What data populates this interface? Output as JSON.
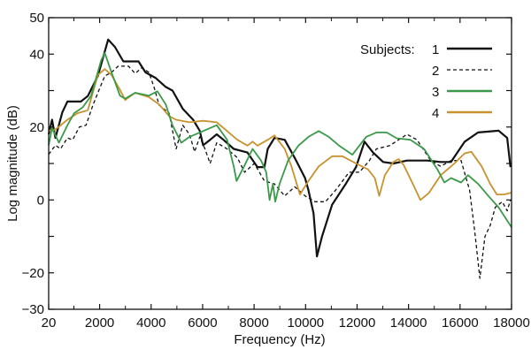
{
  "chart_data": {
    "type": "line",
    "title": "",
    "xlabel": "Frequency (Hz)",
    "ylabel": "Log magnitude (dB)",
    "xlim": [
      20,
      18000
    ],
    "ylim": [
      -30,
      50
    ],
    "x_ticks": [
      20,
      2000,
      4000,
      6000,
      8000,
      10000,
      12000,
      14000,
      16000,
      18000
    ],
    "x_tick_labels": [
      "20",
      "2000",
      "4000",
      "6000",
      "8000",
      "10000",
      "12000",
      "14000",
      "16000",
      "18000"
    ],
    "y_ticks": [
      -30,
      -20,
      -10,
      0,
      10,
      20,
      30,
      40,
      50
    ],
    "y_tick_labels": [
      "−30",
      "−20",
      "",
      "0",
      "",
      "20",
      "",
      "40",
      "50"
    ],
    "grid": false,
    "legend": {
      "title": "Subjects:",
      "placement": "top-right"
    },
    "series": [
      {
        "name": "1",
        "color": "#111111",
        "dash": "solid",
        "x": [
          20,
          150,
          280,
          550,
          750,
          1010,
          1270,
          1540,
          1930,
          2330,
          2590,
          2920,
          3250,
          3510,
          3780,
          4170,
          4570,
          4830,
          5230,
          5630,
          5890,
          6020,
          6290,
          6550,
          6810,
          7210,
          7740,
          8130,
          8400,
          8530,
          8790,
          9190,
          9580,
          9980,
          10110,
          10310,
          10440,
          10640,
          11030,
          11560,
          11960,
          12290,
          12620,
          13010,
          13410,
          13940,
          14730,
          15250,
          15650,
          16180,
          16700,
          17500,
          17830,
          17960
        ],
        "y": [
          18,
          22,
          17,
          24,
          27,
          27,
          27,
          28.5,
          34,
          44,
          42,
          38,
          38,
          38,
          35,
          33.5,
          31,
          30,
          25,
          22,
          19,
          15,
          16.5,
          18,
          16.5,
          14,
          13,
          9,
          9,
          14,
          17,
          16.5,
          11.5,
          6,
          2.7,
          -3.7,
          -15.5,
          -10,
          -1.3,
          4.4,
          9,
          16,
          13,
          10.4,
          10,
          10.8,
          10.8,
          10.4,
          10.4,
          16,
          18.5,
          19,
          17,
          9
        ]
      },
      {
        "name": "2",
        "color": "#111111",
        "dash": "dashed",
        "x": [
          20,
          280,
          480,
          750,
          950,
          1210,
          1470,
          1740,
          1930,
          2200,
          2460,
          2720,
          3120,
          3380,
          3650,
          3910,
          4110,
          4310,
          4700,
          4970,
          5230,
          5490,
          5690,
          5890,
          6090,
          6290,
          6550,
          6950,
          7350,
          7630,
          8010,
          8400,
          8790,
          9190,
          9580,
          9980,
          10370,
          10770,
          11170,
          11690,
          12090,
          12480,
          12750,
          13270,
          13940,
          14330,
          14860,
          15250,
          15650,
          16040,
          16370,
          16570,
          16770,
          16970,
          17170,
          17370,
          17640,
          17830,
          17960
        ],
        "y": [
          12.5,
          15,
          14,
          17,
          16.5,
          20,
          20.5,
          26,
          29.4,
          34,
          35,
          36.7,
          36.7,
          34.7,
          36.3,
          35,
          31,
          26,
          23.8,
          14,
          20.5,
          18,
          13.2,
          17.3,
          14,
          10,
          15.7,
          14,
          11.6,
          7.6,
          10,
          5.2,
          4.4,
          1.1,
          3.6,
          1.1,
          -0.5,
          -0.5,
          2.7,
          7.6,
          7.6,
          10.8,
          14,
          14.9,
          18,
          16.5,
          10.8,
          9.2,
          10.8,
          10.8,
          2.7,
          -8.6,
          -21.5,
          -10,
          -7,
          -2,
          -0.5,
          -3,
          0
        ]
      },
      {
        "name": "3",
        "color": "#3a9a4a",
        "dash": "solid",
        "x": [
          20,
          150,
          420,
          750,
          1010,
          1340,
          1670,
          2060,
          2200,
          2460,
          2790,
          2990,
          3380,
          3910,
          4240,
          4570,
          4830,
          5170,
          5490,
          6020,
          6550,
          6950,
          7210,
          7320,
          7610,
          7940,
          8270,
          8470,
          8600,
          8730,
          8820,
          8990,
          9320,
          9720,
          10110,
          10510,
          10900,
          11300,
          11820,
          12350,
          12750,
          13150,
          13540,
          14070,
          14600,
          15120,
          15390,
          15650,
          16040,
          16310,
          16700,
          17100,
          17500,
          18000
        ],
        "y": [
          15,
          19.7,
          15.7,
          20.5,
          23.8,
          25.4,
          28.6,
          38.3,
          40.3,
          35,
          28.6,
          27.8,
          29.4,
          28.6,
          29.8,
          26.2,
          20.5,
          15.7,
          17.3,
          18.9,
          20.5,
          16.5,
          9.2,
          5.2,
          9.2,
          14,
          10.8,
          7.6,
          0,
          4.4,
          -0.5,
          4.4,
          10.8,
          14.9,
          17.3,
          18.9,
          17.3,
          14.9,
          12.4,
          17.3,
          18.5,
          18.5,
          16.9,
          16.5,
          14,
          8.4,
          4.8,
          6,
          4.8,
          6.8,
          4.4,
          1.1,
          -2.1,
          -7.5
        ]
      },
      {
        "name": "4",
        "color": "#c8922e",
        "dash": "solid",
        "x": [
          20,
          280,
          750,
          1140,
          1540,
          1930,
          2200,
          2460,
          2790,
          2990,
          3380,
          3910,
          4310,
          4700,
          4970,
          5490,
          6020,
          6550,
          6950,
          7350,
          7740,
          7940,
          8130,
          8530,
          8790,
          9190,
          9450,
          9780,
          10110,
          10510,
          11030,
          11430,
          11960,
          12420,
          12690,
          12860,
          13080,
          13410,
          13610,
          13810,
          14140,
          14460,
          14790,
          15250,
          15780,
          16180,
          16440,
          16840,
          17170,
          17430,
          17700,
          18000
        ],
        "y": [
          19,
          19.3,
          22,
          23.8,
          24.6,
          34.3,
          35.9,
          34.3,
          30.2,
          27.4,
          29.4,
          28.2,
          26.2,
          23,
          22,
          21.3,
          21.7,
          21.3,
          18.9,
          16.5,
          14.9,
          16,
          14.9,
          16.5,
          17.7,
          14,
          9.2,
          1.5,
          5.2,
          9.2,
          12,
          12,
          10,
          8.4,
          6,
          1.1,
          6.8,
          10.4,
          11.2,
          9.6,
          4.8,
          0,
          1.9,
          6.8,
          10,
          12.8,
          13.2,
          9.2,
          4.4,
          1.5,
          1.5,
          2
        ]
      }
    ]
  }
}
